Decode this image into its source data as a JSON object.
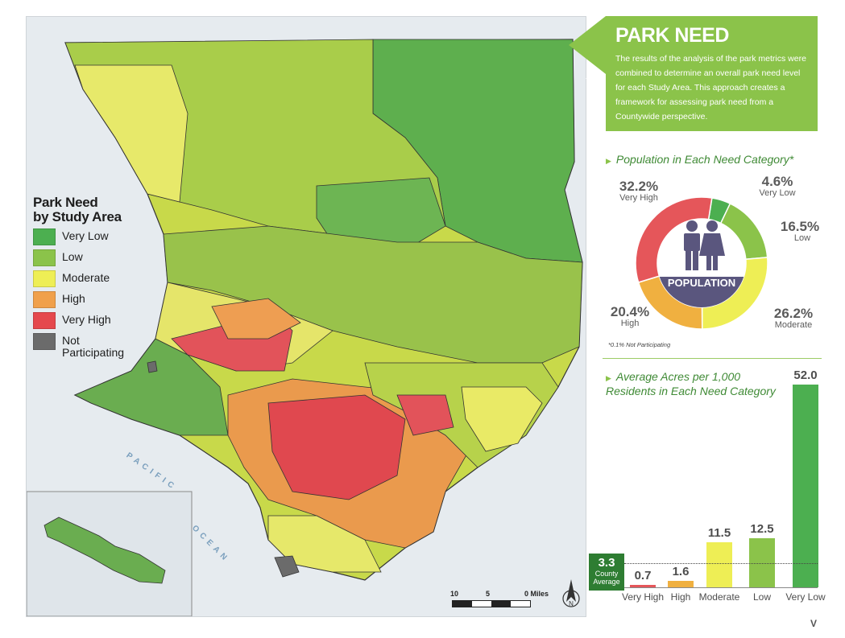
{
  "legend": {
    "title": "Park Need\nby Study Area",
    "items": [
      {
        "label": "Very Low",
        "color": "#4caf50"
      },
      {
        "label": "Low",
        "color": "#8bc34a"
      },
      {
        "label": "Moderate",
        "color": "#eeee55"
      },
      {
        "label": "High",
        "color": "#f0a04b"
      },
      {
        "label": "Very High",
        "color": "#e5484d"
      },
      {
        "label": "Not\nParticipating",
        "color": "#6b6b6b"
      }
    ]
  },
  "map_labels": {
    "ocean_1": "PACIFIC",
    "ocean_2": "OCEAN"
  },
  "scale": {
    "ticks": [
      "10",
      "5",
      "0 Miles"
    ],
    "north": "N"
  },
  "callout": {
    "title": "PARK NEED",
    "body": "The results of the analysis of the park metrics were combined to determine an overall park need level for each Study Area. This approach creates a framework for assessing park need from a Countywide perspective.",
    "arrow": "←"
  },
  "population": {
    "heading": "Population in Each Need Category*",
    "center_label": "POPULATION",
    "note": "*0.1% Not Participating",
    "items": [
      {
        "pct": "32.2%",
        "label": "Very High"
      },
      {
        "pct": "4.6%",
        "label": "Very Low"
      },
      {
        "pct": "16.5%",
        "label": "Low"
      },
      {
        "pct": "26.2%",
        "label": "Moderate"
      },
      {
        "pct": "20.4%",
        "label": "High"
      }
    ]
  },
  "acres": {
    "heading": "Average Acres per 1,000 Residents in Each Need Category",
    "county_average_value": "3.3",
    "county_average_label": "County Average",
    "bars": [
      {
        "label": "Very High",
        "value": "0.7"
      },
      {
        "label": "High",
        "value": "1.6"
      },
      {
        "label": "Moderate",
        "value": "11.5"
      },
      {
        "label": "Low",
        "value": "12.5"
      },
      {
        "label": "Very Low",
        "value": "52.0"
      }
    ]
  },
  "chart_data": [
    {
      "type": "pie",
      "title": "Population in Each Need Category*",
      "categories": [
        "Very Low",
        "Low",
        "Moderate",
        "High",
        "Very High"
      ],
      "values": [
        4.6,
        16.5,
        26.2,
        20.4,
        32.2
      ],
      "colors": [
        "#4caf50",
        "#8bc34a",
        "#eeee55",
        "#f0b040",
        "#e5565a"
      ]
    },
    {
      "type": "bar",
      "title": "Average Acres per 1,000 Residents in Each Need Category",
      "categories": [
        "Very High",
        "High",
        "Moderate",
        "Low",
        "Very Low"
      ],
      "values": [
        0.7,
        1.6,
        11.5,
        12.5,
        52.0
      ],
      "reference_line": {
        "label": "County Average",
        "value": 3.3
      },
      "colors": [
        "#e5565a",
        "#f0b040",
        "#eeee55",
        "#8bc34a",
        "#4caf50"
      ],
      "ylim": [
        0,
        52.0
      ]
    }
  ],
  "page_number": "V"
}
